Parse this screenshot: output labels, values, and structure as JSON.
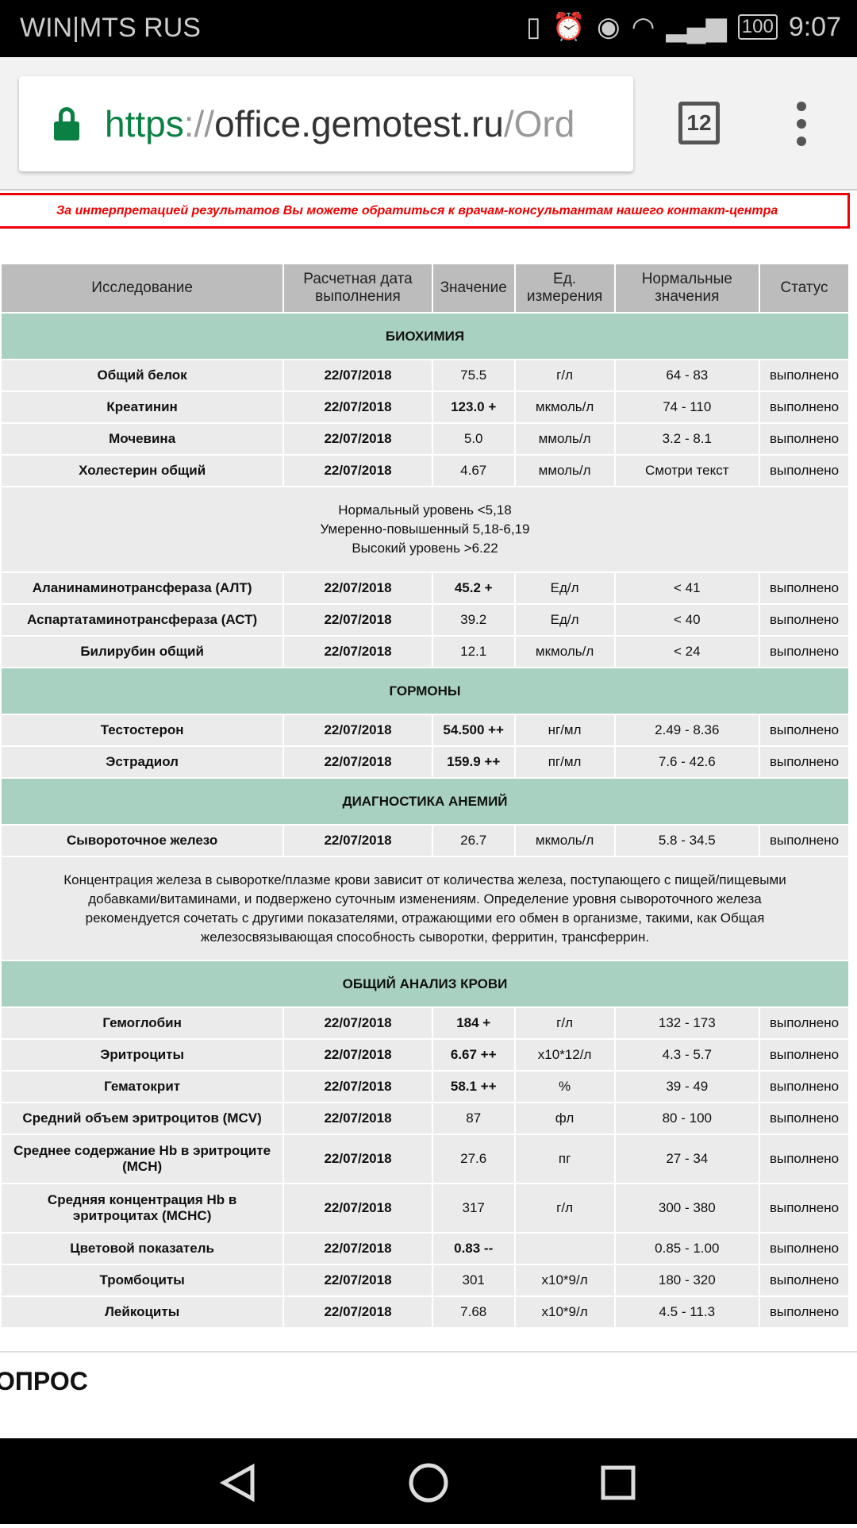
{
  "status_bar": {
    "carrier": "WIN|MTS RUS",
    "battery": "100",
    "time": "9:07",
    "icons": [
      "vibrate-icon",
      "alarm-icon",
      "eye-icon",
      "wifi-icon",
      "signal-icon",
      "battery-icon"
    ]
  },
  "browser": {
    "url_scheme": "https",
    "url_sep": "://",
    "url_host": "office.gemotest.ru",
    "url_path": "/Ord",
    "tab_count": "12"
  },
  "notice": "За интерпретацией результатов Вы можете обратиться к врачам-консультантам нашего контакт-центра",
  "table": {
    "headers": [
      "Исследование",
      "Расчетная дата выполнения",
      "Значение",
      "Ед. измерения",
      "Нормальные значения",
      "Статус"
    ],
    "rows": [
      {
        "type": "section",
        "title": "БИОХИМИЯ"
      },
      {
        "type": "row",
        "name": "Общий белок",
        "date": "22/07/2018",
        "value": "75.5",
        "unit": "г/л",
        "norm": "64 - 83",
        "status": "выполнено"
      },
      {
        "type": "row",
        "name": "Креатинин",
        "date": "22/07/2018",
        "value": "123.0 +",
        "abnormal": true,
        "unit": "мкмоль/л",
        "norm": "74 - 110",
        "status": "выполнено"
      },
      {
        "type": "row",
        "name": "Мочевина",
        "date": "22/07/2018",
        "value": "5.0",
        "unit": "ммоль/л",
        "norm": "3.2 - 8.1",
        "status": "выполнено"
      },
      {
        "type": "row",
        "name": "Холестерин общий",
        "date": "22/07/2018",
        "value": "4.67",
        "unit": "ммоль/л",
        "norm": "Смотри текст",
        "status": "выполнено"
      },
      {
        "type": "note",
        "lines": [
          "Нормальный уровень <5,18",
          "Умеренно-повышенный 5,18-6,19",
          "Высокий уровень >6.22"
        ]
      },
      {
        "type": "row",
        "name": "Аланинаминотрансфераза (АЛТ)",
        "date": "22/07/2018",
        "value": "45.2 +",
        "abnormal": true,
        "unit": "Ед/л",
        "norm": "< 41",
        "status": "выполнено"
      },
      {
        "type": "row",
        "name": "Аспартатаминотрансфераза (АСТ)",
        "date": "22/07/2018",
        "value": "39.2",
        "unit": "Ед/л",
        "norm": "< 40",
        "status": "выполнено"
      },
      {
        "type": "row",
        "name": "Билирубин общий",
        "date": "22/07/2018",
        "value": "12.1",
        "unit": "мкмоль/л",
        "norm": "< 24",
        "status": "выполнено"
      },
      {
        "type": "section",
        "title": "ГОРМОНЫ"
      },
      {
        "type": "row",
        "name": "Тестостерон",
        "date": "22/07/2018",
        "value": "54.500 ++",
        "abnormal": true,
        "unit": "нг/мл",
        "norm": "2.49 - 8.36",
        "status": "выполнено"
      },
      {
        "type": "row",
        "name": "Эстрадиол",
        "date": "22/07/2018",
        "value": "159.9 ++",
        "abnormal": true,
        "unit": "пг/мл",
        "norm": "7.6 - 42.6",
        "status": "выполнено"
      },
      {
        "type": "section",
        "title": "ДИАГНОСТИКА АНЕМИЙ"
      },
      {
        "type": "row",
        "name": "Сывороточное железо",
        "date": "22/07/2018",
        "value": "26.7",
        "unit": "мкмоль/л",
        "norm": "5.8 - 34.5",
        "status": "выполнено"
      },
      {
        "type": "note",
        "big": true,
        "lines": [
          "Концентрация железа в сыворотке/плазме крови зависит от количества железа, поступающего с пищей/пищевыми добавками/витаминами, и подвержено суточным изменениям. Определение уровня сывороточного железа рекомендуется сочетать с другими показателями, отражающими его обмен в организме, такими, как Общая железосвязывающая способность сыворотки, ферритин, трансферрин."
        ]
      },
      {
        "type": "section",
        "title": "ОБЩИЙ АНАЛИЗ КРОВИ"
      },
      {
        "type": "row",
        "name": "Гемоглобин",
        "date": "22/07/2018",
        "value": "184 +",
        "abnormal": true,
        "unit": "г/л",
        "norm": "132 - 173",
        "status": "выполнено"
      },
      {
        "type": "row",
        "name": "Эритроциты",
        "date": "22/07/2018",
        "value": "6.67 ++",
        "abnormal": true,
        "unit": "x10*12/л",
        "norm": "4.3 - 5.7",
        "status": "выполнено"
      },
      {
        "type": "row",
        "name": "Гематокрит",
        "date": "22/07/2018",
        "value": "58.1 ++",
        "abnormal": true,
        "unit": "%",
        "norm": "39 - 49",
        "status": "выполнено"
      },
      {
        "type": "row",
        "name": "Средний объем эритроцитов (MCV)",
        "date": "22/07/2018",
        "value": "87",
        "unit": "фл",
        "norm": "80 - 100",
        "status": "выполнено"
      },
      {
        "type": "row",
        "tall": true,
        "name": "Среднее содержание Hb в эритроците (MCH)",
        "date": "22/07/2018",
        "value": "27.6",
        "unit": "пг",
        "norm": "27 - 34",
        "status": "выполнено"
      },
      {
        "type": "row",
        "tall": true,
        "name": "Средняя концентрация Hb в эритроцитах (MCHC)",
        "date": "22/07/2018",
        "value": "317",
        "unit": "г/л",
        "norm": "300 - 380",
        "status": "выполнено"
      },
      {
        "type": "row",
        "name": "Цветовой показатель",
        "date": "22/07/2018",
        "value": "0.83 --",
        "abnormal": true,
        "unit": "",
        "norm": "0.85 - 1.00",
        "status": "выполнено"
      },
      {
        "type": "row",
        "name": "Тромбоциты",
        "date": "22/07/2018",
        "value": "301",
        "unit": "x10*9/л",
        "norm": "180 - 320",
        "status": "выполнено"
      },
      {
        "type": "row",
        "name": "Лейкоциты",
        "date": "22/07/2018",
        "value": "7.68",
        "unit": "x10*9/л",
        "norm": "4.5 - 11.3",
        "status": "выполнено"
      }
    ]
  },
  "next_section": "ОПРОС",
  "colors": {
    "section_bg": "#a9d1c1",
    "header_bg": "#bcbcbc",
    "row_bg": "#ebebeb",
    "notice": "#e00000",
    "secure": "#0b8043"
  }
}
